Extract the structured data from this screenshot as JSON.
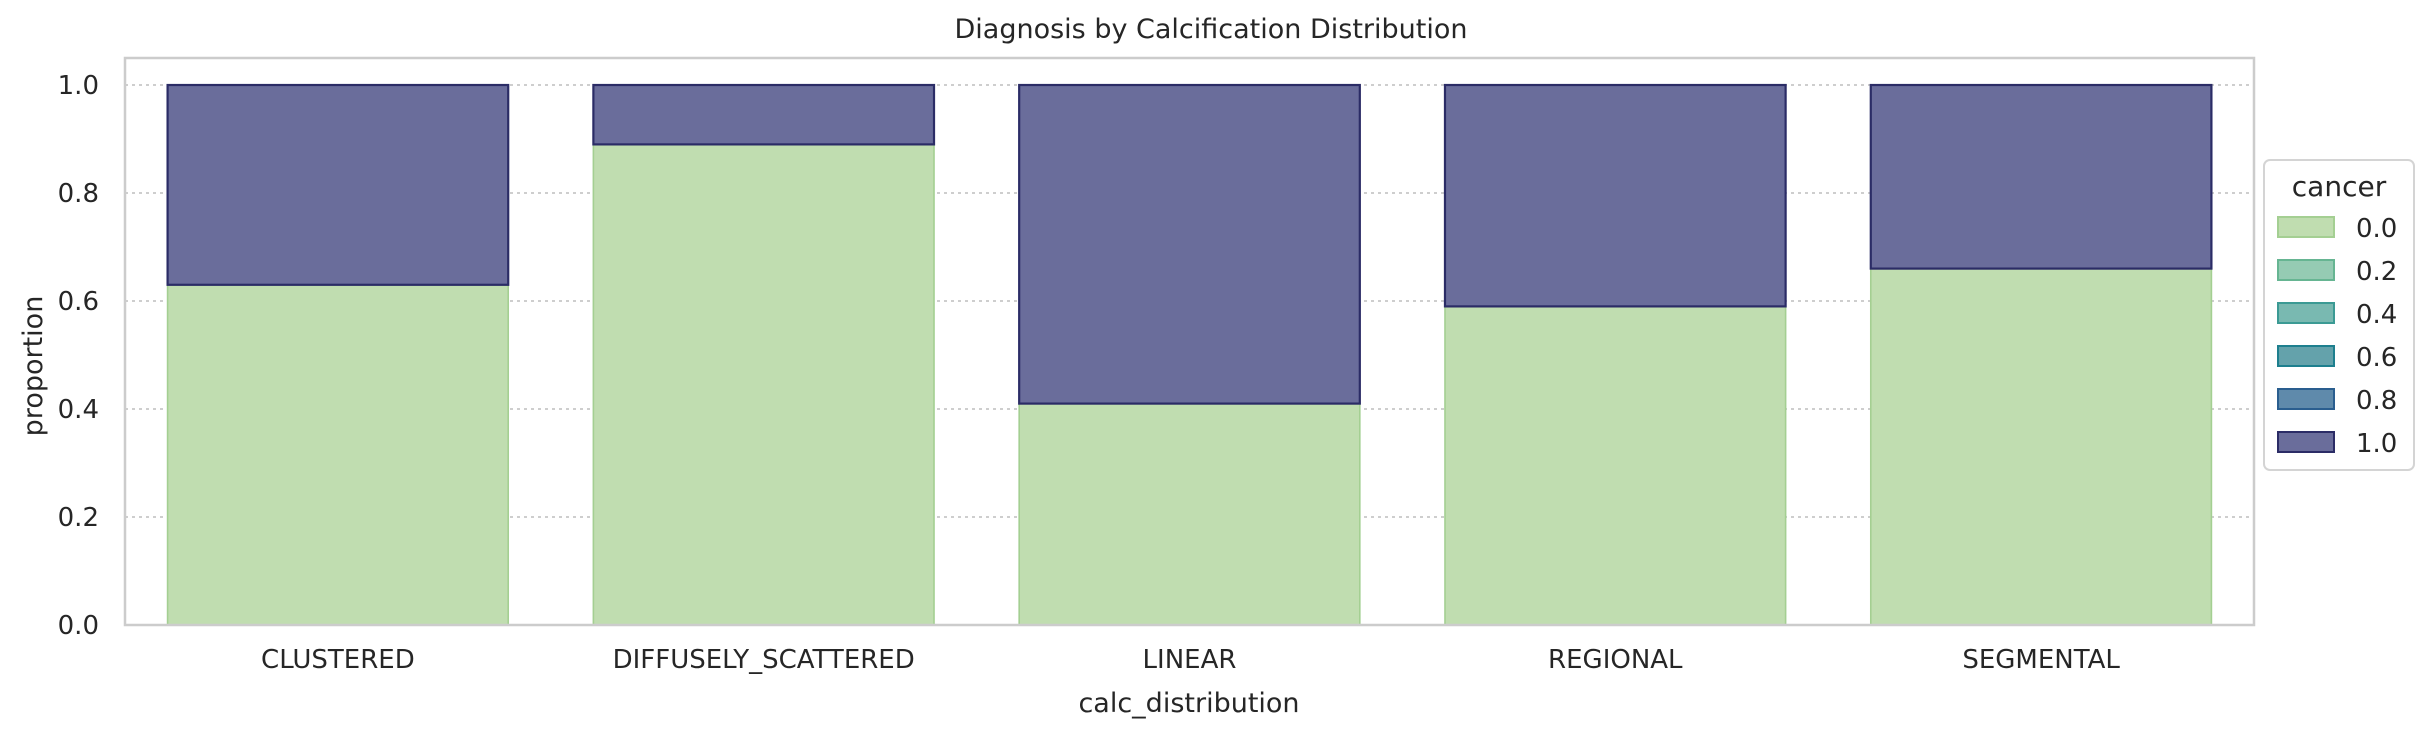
{
  "chart_data": {
    "type": "bar",
    "stacked": true,
    "normalized": true,
    "title": "Diagnosis by Calcification Distribution",
    "xlabel": "calc_distribution",
    "ylabel": "proportion",
    "ylim": [
      0,
      1.05
    ],
    "yticks": [
      0.0,
      0.2,
      0.4,
      0.6,
      0.8,
      1.0
    ],
    "ytick_labels": [
      "0.0",
      "0.2",
      "0.4",
      "0.6",
      "0.8",
      "1.0"
    ],
    "grid": true,
    "categories": [
      "CLUSTERED",
      "DIFFUSELY_SCATTERED",
      "LINEAR",
      "REGIONAL",
      "SEGMENTAL"
    ],
    "series": [
      {
        "name": "0.0",
        "values": [
          0.63,
          0.89,
          0.41,
          0.59,
          0.66
        ]
      },
      {
        "name": "1.0",
        "values": [
          0.37,
          0.11,
          0.59,
          0.41,
          0.34
        ]
      }
    ],
    "legend": {
      "title": "cancer",
      "placement": "right",
      "entries": [
        {
          "label": "0.0",
          "fill": "#c0ddb0",
          "stroke": "#a4cf92"
        },
        {
          "label": "0.2",
          "fill": "#95cbb3",
          "stroke": "#66b592"
        },
        {
          "label": "0.4",
          "fill": "#79b9b1",
          "stroke": "#3b9a94"
        },
        {
          "label": "0.6",
          "fill": "#64a2ab",
          "stroke": "#1d7f8e"
        },
        {
          "label": "0.8",
          "fill": "#5f8aab",
          "stroke": "#2a5e8f"
        },
        {
          "label": "1.0",
          "fill": "#6a6d9b",
          "stroke": "#2b2c66"
        }
      ]
    },
    "colors": {
      "series_0_fill": "#c0ddb0",
      "series_0_stroke": "#a4cf92",
      "series_1_fill": "#6a6d9b",
      "series_1_stroke": "#2b2c66",
      "grid": "#bdbdbd",
      "frame": "#cccccc"
    }
  }
}
